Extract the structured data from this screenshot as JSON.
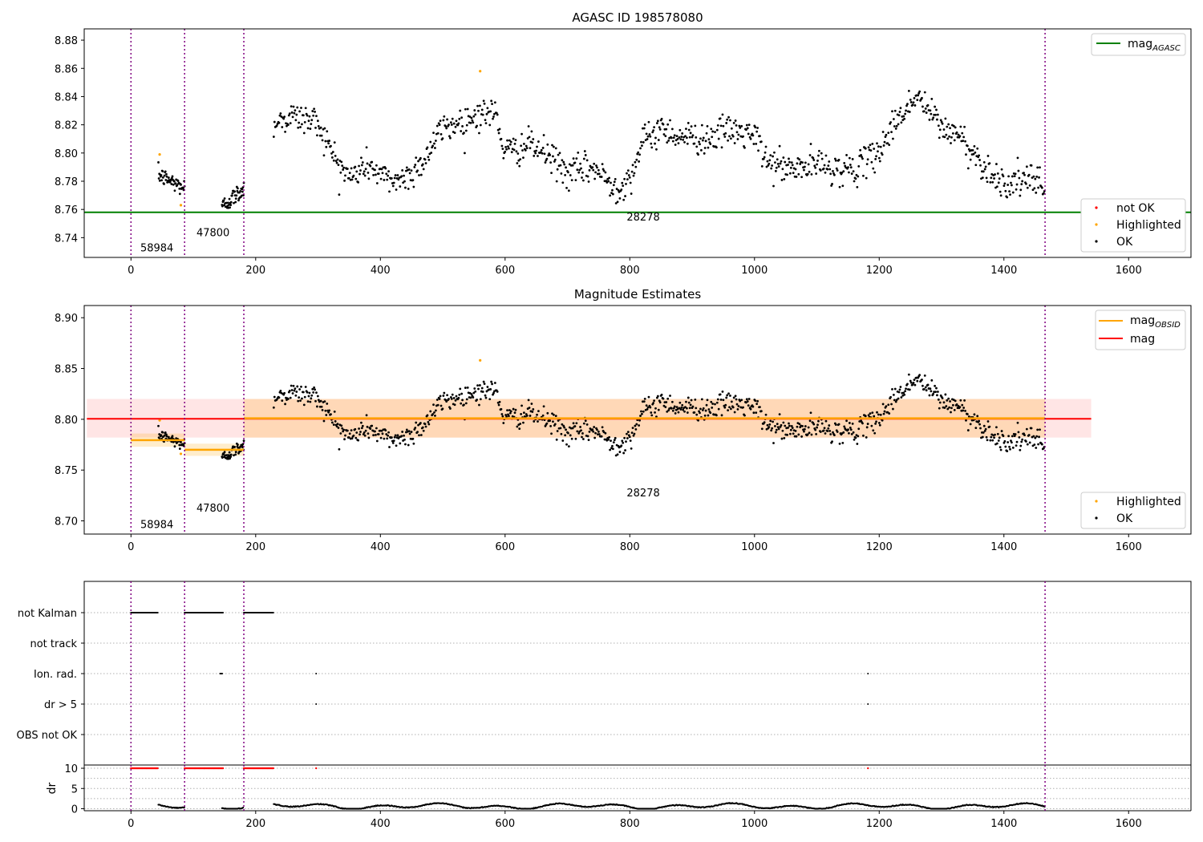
{
  "chart_data": [
    {
      "type": "scatter",
      "title": "AGASC ID 198578080",
      "xlim": [
        -75,
        1700
      ],
      "ylim": [
        8.726,
        8.888
      ],
      "xticks": [
        0,
        200,
        400,
        600,
        800,
        1000,
        1200,
        1400,
        1600
      ],
      "yticks": [
        8.74,
        8.76,
        8.78,
        8.8,
        8.82,
        8.84,
        8.86,
        8.88
      ],
      "yticks_label": [
        "8.74",
        "8.76",
        "8.78",
        "8.80",
        "8.82",
        "8.84",
        "8.86",
        "8.88"
      ],
      "vlines": [
        0,
        86,
        181,
        1466
      ],
      "segment_start": 229,
      "segment_end": 1466,
      "mag_agasc": 8.758,
      "obsid_labels": [
        {
          "x": 15,
          "y": 8.733,
          "text": "58984"
        },
        {
          "x": 105,
          "y": 8.744,
          "text": "47800"
        },
        {
          "x": 795,
          "y": 8.755,
          "text": "28278"
        }
      ],
      "highlighted_points": [
        [
          46,
          8.799
        ],
        [
          80,
          8.763
        ],
        [
          560,
          8.858
        ]
      ],
      "legend_upper": [
        {
          "label": "mag",
          "sub": "AGASC",
          "color": "#008000"
        }
      ],
      "legend_lower": [
        {
          "label": "not OK",
          "color": "#ff0000"
        },
        {
          "label": "Highlighted",
          "color": "#ffa500"
        },
        {
          "label": "OK",
          "color": "#000000"
        }
      ]
    },
    {
      "type": "scatter",
      "title": "Magnitude Estimates",
      "xlim": [
        -75,
        1700
      ],
      "ylim": [
        8.687,
        8.912
      ],
      "xticks": [
        0,
        200,
        400,
        600,
        800,
        1000,
        1200,
        1400,
        1600
      ],
      "yticks": [
        8.7,
        8.75,
        8.8,
        8.85,
        8.9
      ],
      "yticks_label": [
        "8.70",
        "8.75",
        "8.80",
        "8.85",
        "8.90"
      ],
      "mag": 8.8005,
      "mag_band": [
        8.782,
        8.82
      ],
      "mag_line_x": [
        0,
        1540
      ],
      "obsid_segments": [
        {
          "x0": 0,
          "x1": 86,
          "mag": 8.7795,
          "lo": 8.773,
          "hi": 8.786
        },
        {
          "x0": 86,
          "x1": 181,
          "mag": 8.77,
          "lo": 8.764,
          "hi": 8.776
        },
        {
          "x0": 181,
          "x1": 1466,
          "mag": 8.801,
          "lo": 8.782,
          "hi": 8.82
        }
      ],
      "obsid_labels": [
        {
          "x": 15,
          "y": 8.697,
          "text": "58984"
        },
        {
          "x": 105,
          "y": 8.713,
          "text": "47800"
        },
        {
          "x": 795,
          "y": 8.728,
          "text": "28278"
        }
      ],
      "highlighted_points": [
        [
          46,
          8.799
        ],
        [
          80,
          8.766
        ],
        [
          560,
          8.858
        ]
      ],
      "legend_upper": [
        {
          "label": "mag",
          "sub": "OBSID",
          "color": "#ffa500"
        },
        {
          "label": "mag",
          "sub": "",
          "color": "#ff0000"
        }
      ],
      "legend_lower": [
        {
          "label": "Highlighted",
          "color": "#ffa500"
        },
        {
          "label": "OK",
          "color": "#000000"
        }
      ]
    },
    {
      "type": "scatter",
      "xlim": [
        -75,
        1700
      ],
      "xticks": [
        0,
        200,
        400,
        600,
        800,
        1000,
        1200,
        1400,
        1600
      ],
      "flag_labels": [
        "not Kalman",
        "not track",
        "Ion. rad.",
        "dr > 5",
        "OBS not OK"
      ],
      "flag_ranges": {
        "not Kalman": [
          [
            0,
            43
          ],
          [
            86,
            148
          ],
          [
            181,
            229
          ]
        ],
        "not track": [],
        "Ion. rad.": [
          [
            143,
            147
          ],
          [
            297,
            297
          ],
          [
            1182,
            1182
          ]
        ],
        "dr > 5": [
          [
            297,
            297
          ],
          [
            1182,
            1182
          ]
        ],
        "OBS not OK": []
      },
      "dr_ylabel": "dr",
      "dr_ylim": [
        -0.5,
        10.8
      ],
      "dr_yticks": [
        0,
        5,
        10
      ],
      "dr_clip": 10,
      "dr_clipped_ranges": [
        [
          0,
          43
        ],
        [
          86,
          148
        ],
        [
          181,
          229
        ],
        [
          297,
          297
        ],
        [
          1182,
          1182
        ]
      ]
    }
  ]
}
